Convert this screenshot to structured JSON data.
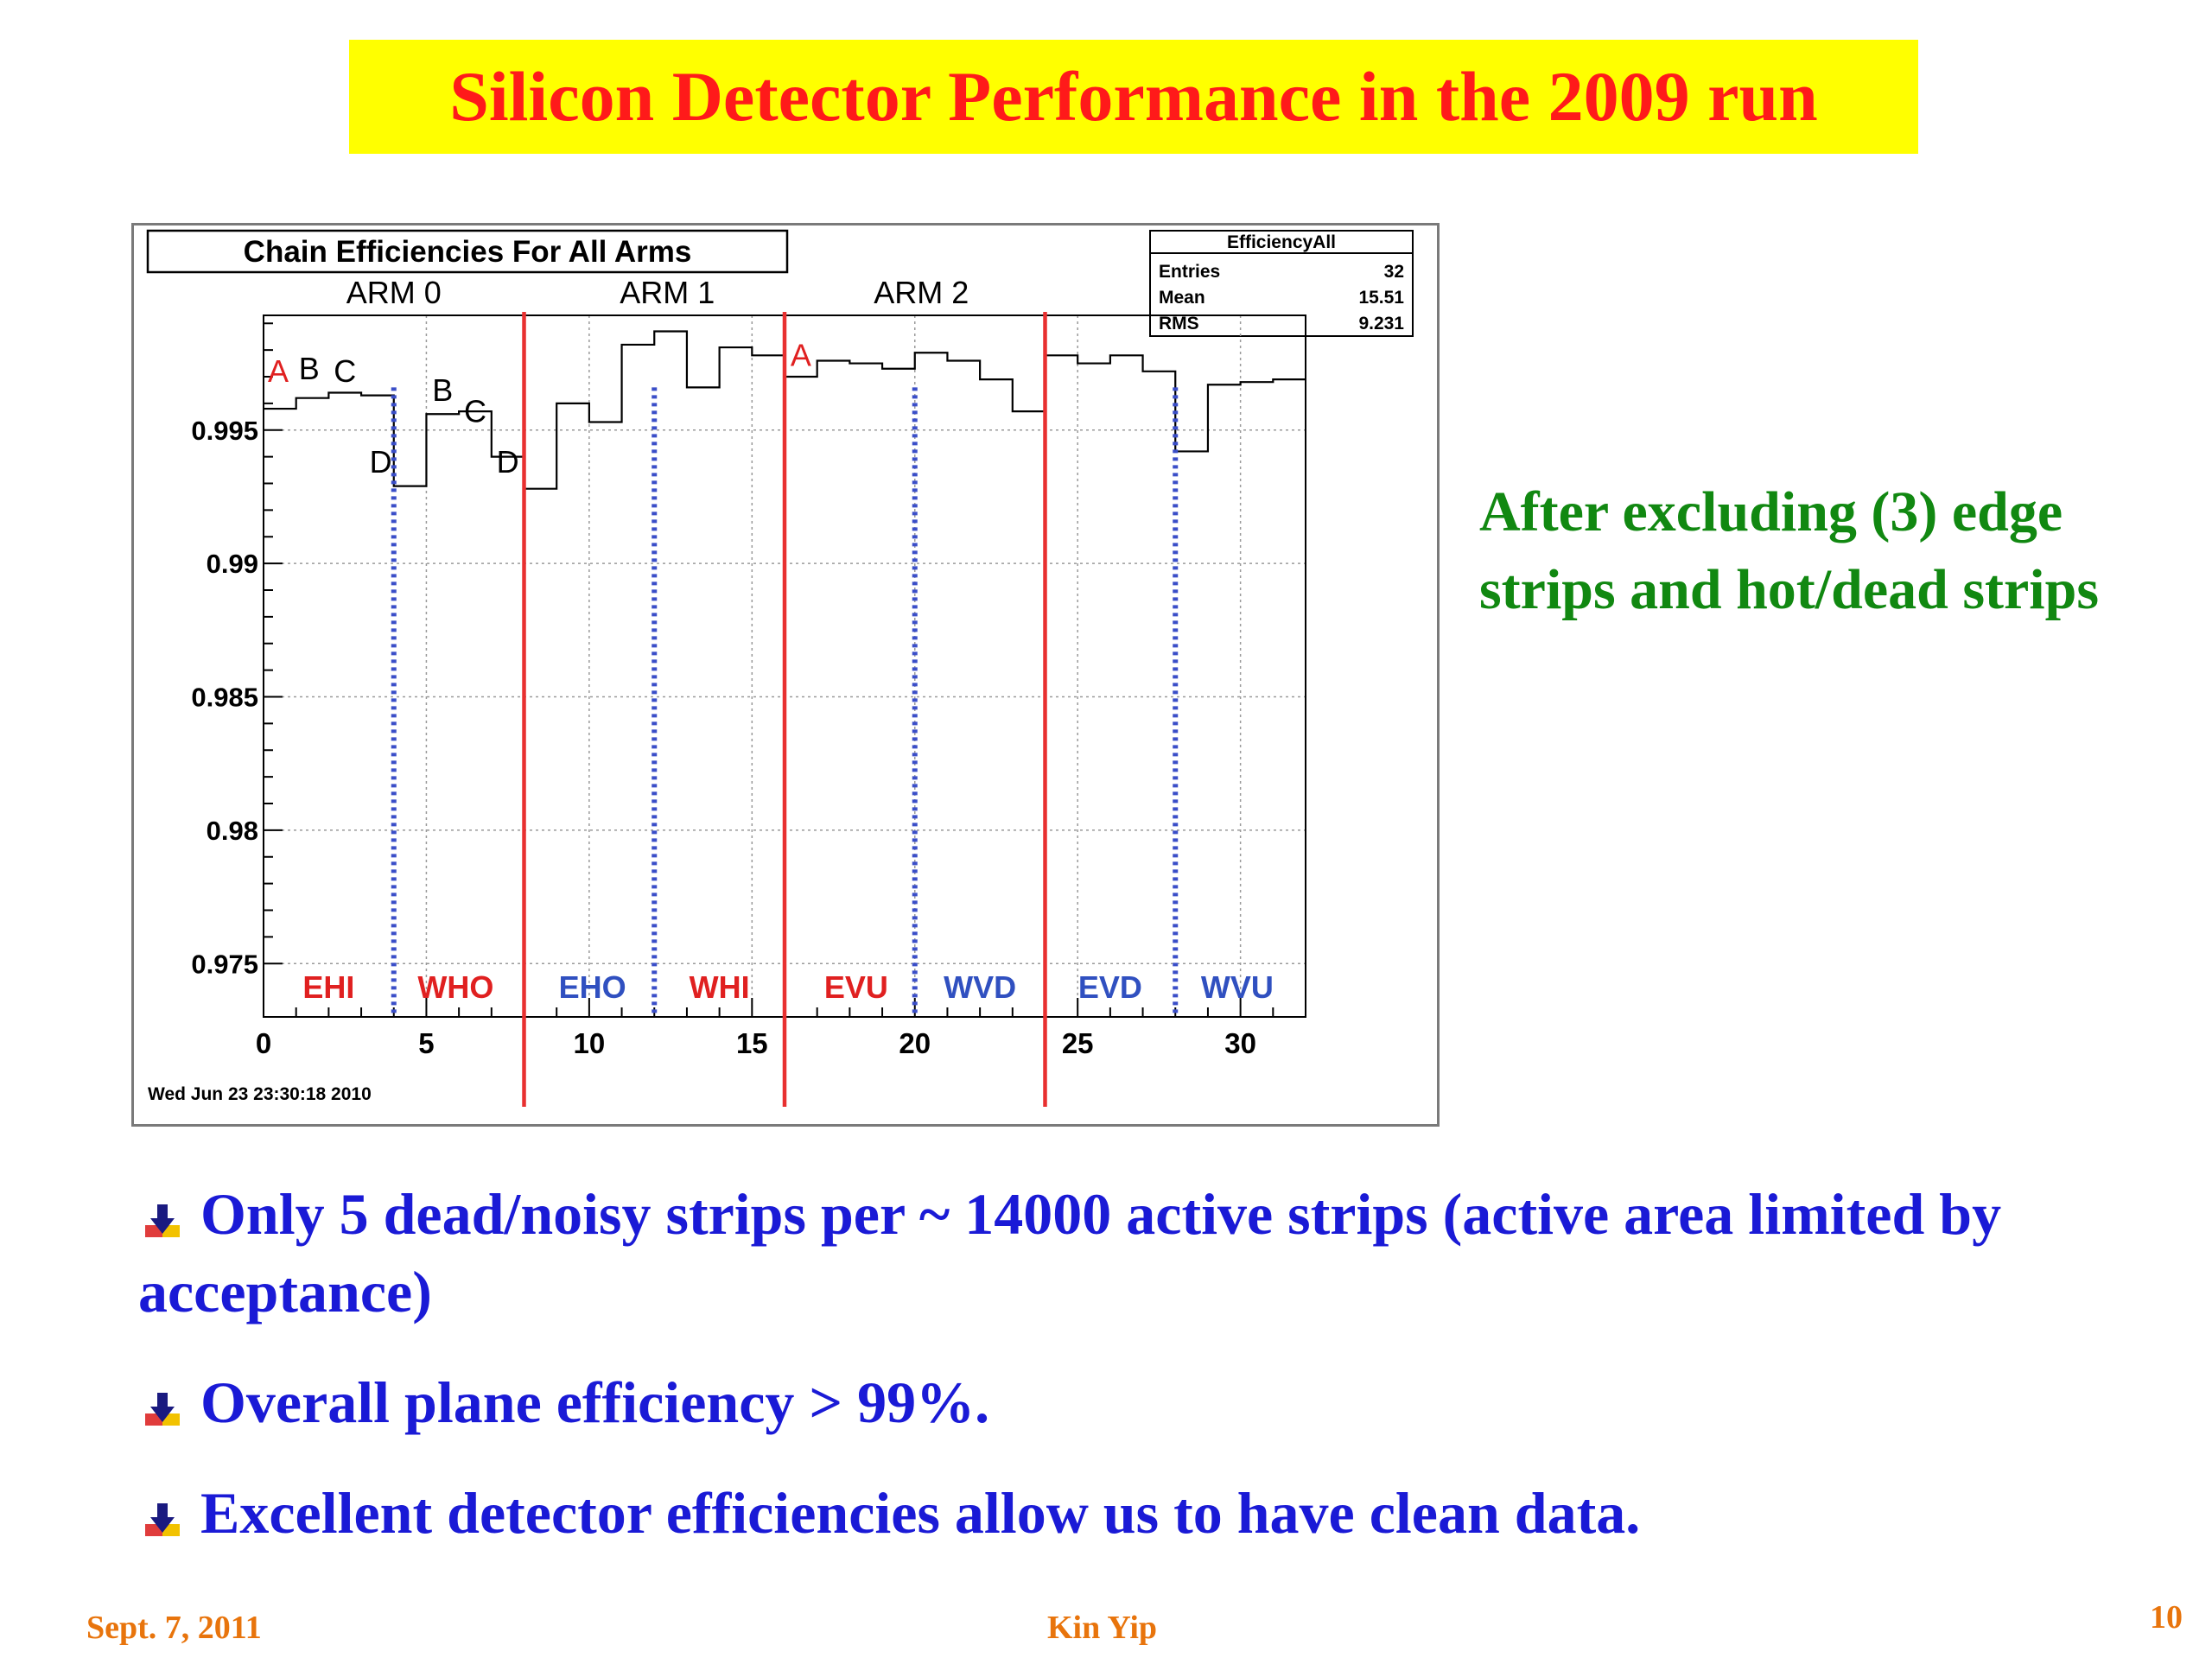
{
  "slide": {
    "title": "Silicon Detector Performance in the 2009 run",
    "side_note_lines": [
      "After excluding (3) edge",
      "strips and hot/dead strips"
    ],
    "bullets": [
      "Only 5 dead/noisy strips per ~ 14000 active strips (active area limited by acceptance)",
      "Overall plane efficiency > 99%.",
      "Excellent detector efficiencies allow us to have clean data."
    ],
    "footer": {
      "date": "Sept. 7, 2011",
      "author": "Kin Yip",
      "page": "10"
    },
    "colors": {
      "title_bg": "#ffff00",
      "title_text": "#ff1a1a",
      "side_note": "#118811",
      "bullets": "#1a1ad6",
      "footer": "#e8740c"
    },
    "bullet_icon": "arrow-down-icon"
  },
  "chart_data": {
    "type": "line",
    "title": "Chain Efficiencies For All Arms",
    "timestamp": "Wed Jun 23 23:30:18 2010",
    "xlim": [
      0,
      32
    ],
    "ylim": [
      0.973,
      0.9993
    ],
    "x_ticks": [
      0,
      5,
      10,
      15,
      20,
      25,
      30
    ],
    "y_ticks": [
      0.975,
      0.98,
      0.985,
      0.99,
      0.995
    ],
    "grid": true,
    "stats_box": {
      "name": "EfficiencyAll",
      "rows": [
        {
          "label": "Entries",
          "value": "32"
        },
        {
          "label": "Mean",
          "value": "15.51"
        },
        {
          "label": "RMS",
          "value": "9.231"
        }
      ]
    },
    "arm_labels": [
      {
        "label": "ARM 0",
        "x": 4
      },
      {
        "label": "ARM 1",
        "x": 12.4
      },
      {
        "label": "ARM 2",
        "x": 20.2
      }
    ],
    "red_lines_x": [
      8,
      16,
      24
    ],
    "blue_lines_x": [
      4,
      12,
      20,
      28
    ],
    "bin_values": [
      0.9958,
      0.9962,
      0.9964,
      0.9963,
      0.9929,
      0.9956,
      0.9957,
      0.994,
      0.9928,
      0.996,
      0.9953,
      0.9982,
      0.9987,
      0.9966,
      0.9981,
      0.9978,
      0.997,
      0.9976,
      0.9975,
      0.9973,
      0.9979,
      0.9976,
      0.9969,
      0.9957,
      0.9978,
      0.9975,
      0.9978,
      0.9972,
      0.9942,
      0.9967,
      0.9968,
      0.9969
    ],
    "bin_letters": [
      {
        "label": "A",
        "x": 0.45,
        "y": 0.9968,
        "color": "#e02020"
      },
      {
        "label": "B",
        "x": 1.4,
        "y": 0.9969,
        "color": "#000000"
      },
      {
        "label": "C",
        "x": 2.5,
        "y": 0.9968,
        "color": "#000000"
      },
      {
        "label": "D",
        "x": 3.6,
        "y": 0.9934,
        "color": "#000000"
      },
      {
        "label": "B",
        "x": 5.5,
        "y": 0.9961,
        "color": "#000000"
      },
      {
        "label": "C",
        "x": 6.5,
        "y": 0.9953,
        "color": "#000000"
      },
      {
        "label": "D",
        "x": 7.5,
        "y": 0.9934,
        "color": "#000000"
      },
      {
        "label": "A",
        "x": 16.5,
        "y": 0.9974,
        "color": "#e02020"
      }
    ],
    "region_labels": [
      {
        "label": "EHI",
        "x": 2.0,
        "color": "#e02020"
      },
      {
        "label": "WHO",
        "x": 5.9,
        "color": "#e02020"
      },
      {
        "label": "EHO",
        "x": 10.1,
        "color": "#3050c0"
      },
      {
        "label": "WHI",
        "x": 14.0,
        "color": "#e02020"
      },
      {
        "label": "EVU",
        "x": 18.2,
        "color": "#e02020"
      },
      {
        "label": "WVD",
        "x": 22.0,
        "color": "#3050c0"
      },
      {
        "label": "EVD",
        "x": 26.0,
        "color": "#3050c0"
      },
      {
        "label": "WVU",
        "x": 29.9,
        "color": "#3050c0"
      }
    ]
  }
}
